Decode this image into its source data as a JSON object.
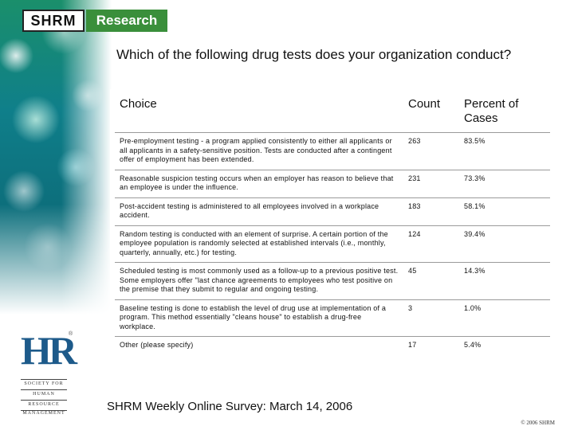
{
  "header": {
    "logo_left": "SHRM",
    "logo_right": "Research",
    "brand_green": "#3a8f3b"
  },
  "question": "Which of the following drug tests does your organization conduct?",
  "table": {
    "columns": [
      "Choice",
      "Count",
      "Percent of Cases"
    ],
    "rows": [
      {
        "choice": "Pre-employment testing - a program applied consistently to either all applicants or all applicants in a safety-sensitive position. Tests are conducted after a contingent offer of employment has been extended.",
        "count": "263",
        "percent": "83.5%"
      },
      {
        "choice": "Reasonable suspicion testing occurs when an employer has reason to believe that an employee is under the influence.",
        "count": "231",
        "percent": "73.3%"
      },
      {
        "choice": "Post-accident testing is administered to all employees involved in a workplace accident.",
        "count": "183",
        "percent": "58.1%"
      },
      {
        "choice": "Random testing is conducted with an element of surprise. A certain portion of the employee population is randomly selected at established intervals (i.e., monthly, quarterly, annually, etc.) for testing.",
        "count": "124",
        "percent": "39.4%"
      },
      {
        "choice": "Scheduled testing is most commonly used as a follow-up to a previous positive test. Some employers offer \"last chance agreements to employees who test positive on the premise that they submit to regular and ongoing testing.",
        "count": "45",
        "percent": "14.3%"
      },
      {
        "choice": "Baseline testing is done to establish the level of drug use at implementation of a program. This method essentially \"cleans house\" to establish a drug-free workplace.",
        "count": "3",
        "percent": "1.0%"
      },
      {
        "choice": "Other (please specify)",
        "count": "17",
        "percent": "5.4%"
      }
    ]
  },
  "hr_logo": {
    "mark": "HR",
    "reg": "®",
    "words": [
      "SOCIETY FOR",
      "HUMAN",
      "RESOURCE",
      "MANAGEMENT"
    ],
    "color": "#1d5a8a"
  },
  "footer": "SHRM Weekly Online Survey: March 14, 2006",
  "copyright": "© 2006 SHRM"
}
